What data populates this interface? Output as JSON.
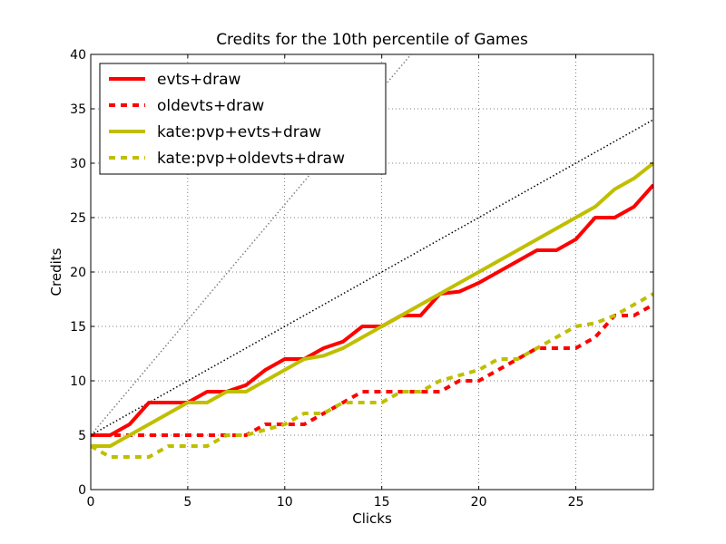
{
  "chart_data": {
    "type": "line",
    "title": "Credits for the 10th percentile of Games",
    "xlabel": "Clicks",
    "ylabel": "Credits",
    "xlim": [
      0,
      29
    ],
    "ylim": [
      0,
      40
    ],
    "xticks": [
      0,
      5,
      10,
      15,
      20,
      25
    ],
    "yticks": [
      0,
      5,
      10,
      15,
      20,
      25,
      30,
      35,
      40
    ],
    "grid": true,
    "legend_position": "top-left",
    "x": [
      0,
      1,
      2,
      3,
      4,
      5,
      6,
      7,
      8,
      9,
      10,
      11,
      12,
      13,
      14,
      15,
      16,
      17,
      18,
      19,
      20,
      21,
      22,
      23,
      24,
      25,
      26,
      27,
      28,
      29
    ],
    "series": [
      {
        "name": "evts+draw",
        "color": "#ff0000",
        "dash": "solid",
        "values": [
          5,
          5,
          6,
          8,
          8,
          8,
          9,
          9,
          9.6,
          11,
          12,
          12,
          13,
          13.6,
          15,
          15,
          16,
          16,
          18,
          18.2,
          19,
          20,
          21,
          22,
          22,
          23,
          25,
          25,
          26,
          28
        ]
      },
      {
        "name": "oldevts+draw",
        "color": "#ff0000",
        "dash": "dashed",
        "values": [
          5,
          5,
          5,
          5,
          5,
          5,
          5,
          5,
          5,
          6,
          6,
          6,
          7,
          8,
          9,
          9,
          9,
          9,
          9,
          10,
          10,
          11,
          12,
          13,
          13,
          13,
          14,
          16,
          16,
          17
        ]
      },
      {
        "name": "kate:pvp+evts+draw",
        "color": "#bfbf00",
        "dash": "solid",
        "values": [
          4,
          4,
          5,
          6,
          7,
          8,
          8,
          9,
          9,
          10,
          11,
          12,
          12.3,
          13,
          14,
          15,
          16,
          17,
          18,
          19,
          20,
          21,
          22,
          23,
          24,
          25,
          26,
          27.6,
          28.6,
          30
        ]
      },
      {
        "name": "kate:pvp+oldevts+draw",
        "color": "#bfbf00",
        "dash": "dashed",
        "values": [
          4,
          3,
          3,
          3,
          4,
          4,
          4,
          5,
          5,
          5.5,
          6,
          7,
          7,
          8,
          8,
          8,
          9,
          9,
          10,
          10.5,
          11,
          12,
          12,
          13,
          14,
          15,
          15.3,
          16,
          17,
          18
        ]
      }
    ],
    "reference_lines": [
      {
        "color": "#808080",
        "style": "dotted",
        "x": [
          0,
          29
        ],
        "y": [
          5,
          66.5
        ]
      },
      {
        "color": "#000000",
        "style": "dotted",
        "x": [
          0,
          29
        ],
        "y": [
          5,
          34
        ]
      }
    ]
  }
}
